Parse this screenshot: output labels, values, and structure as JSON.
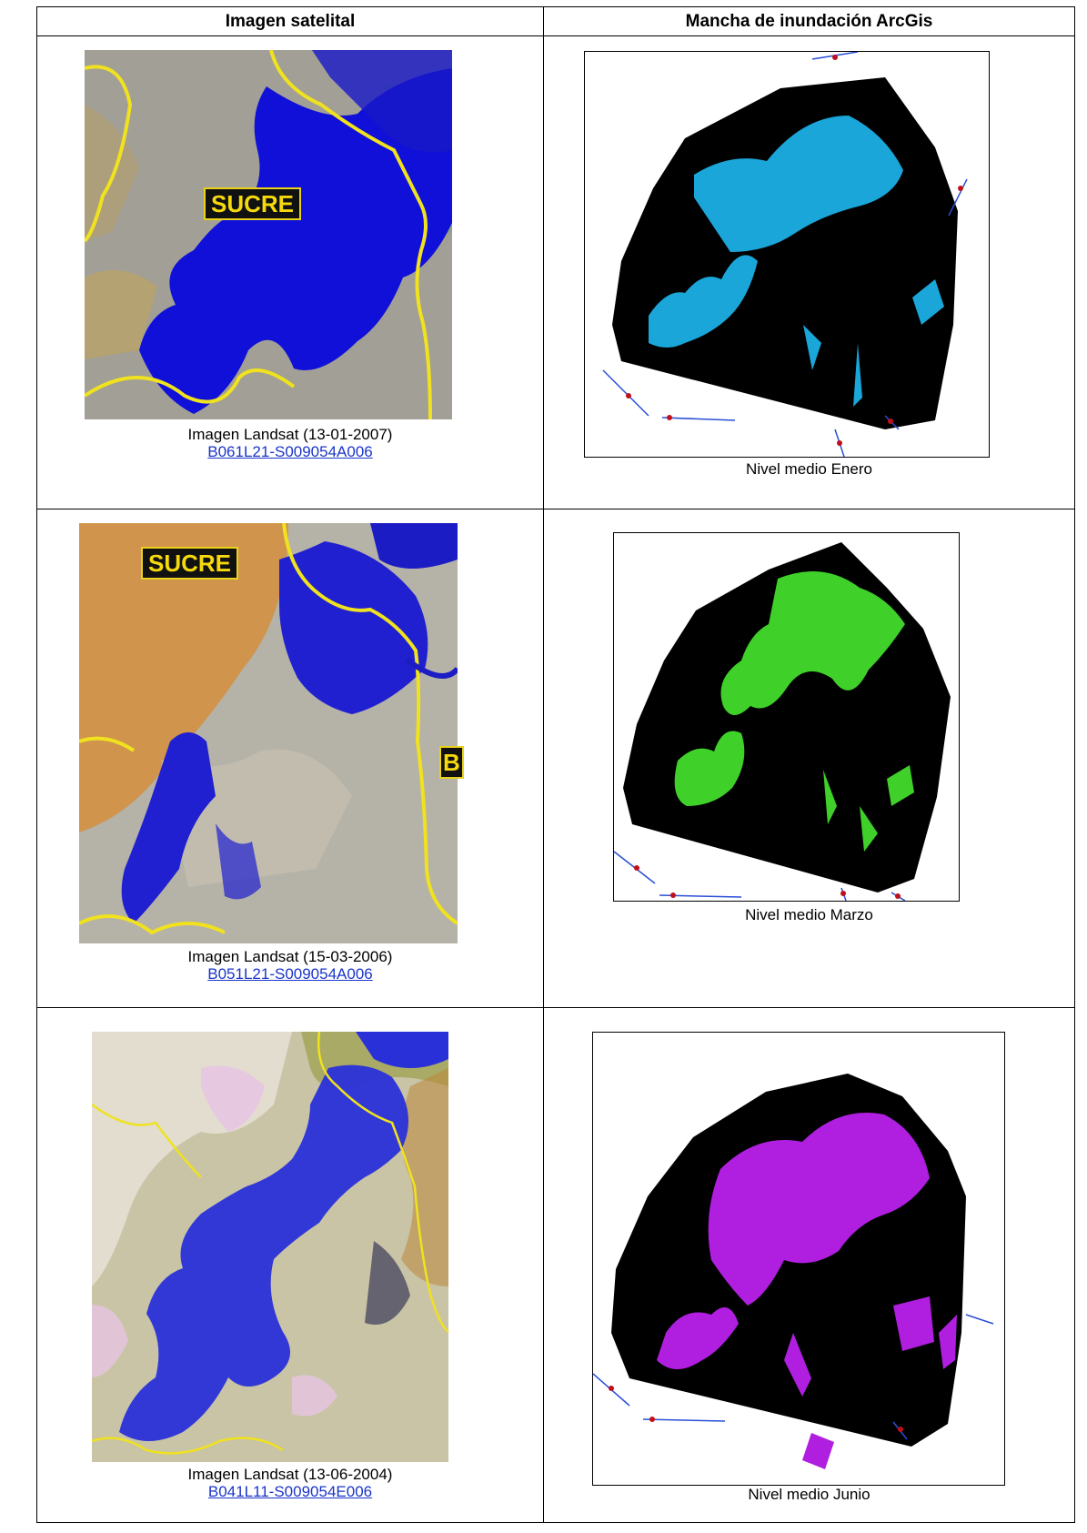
{
  "document": {
    "top_caption": "",
    "headers": {
      "left": "Imagen satelital",
      "right": "Mancha de inundación ArcGis"
    },
    "rows": [
      {
        "sat_label": "SUCRE",
        "image_caption": "Imagen Landsat (13-01-2007)",
        "image_code": "B061L21-S009054A006",
        "map_caption": "Nivel medio Enero",
        "flood_color": "#1aa6d9"
      },
      {
        "sat_label": "SUCRE",
        "sat_label_2": "B",
        "image_caption": "Imagen Landsat (15-03-2006)",
        "image_code": "B051L21-S009054A006",
        "map_caption": "Nivel medio Marzo",
        "flood_color": "#3fd12a"
      },
      {
        "image_caption": "Imagen Landsat (13-06-2004)",
        "image_code": "B041L11-S009054E006",
        "map_caption": "Nivel medio Junio",
        "flood_color": "#b01fe0"
      }
    ],
    "colors": {
      "water_blue": "#1010d8",
      "boundary_yellow": "#f0e21e",
      "map_black": "#000000",
      "road_blue": "#2a4fd6",
      "point_red": "#c0101a"
    }
  }
}
